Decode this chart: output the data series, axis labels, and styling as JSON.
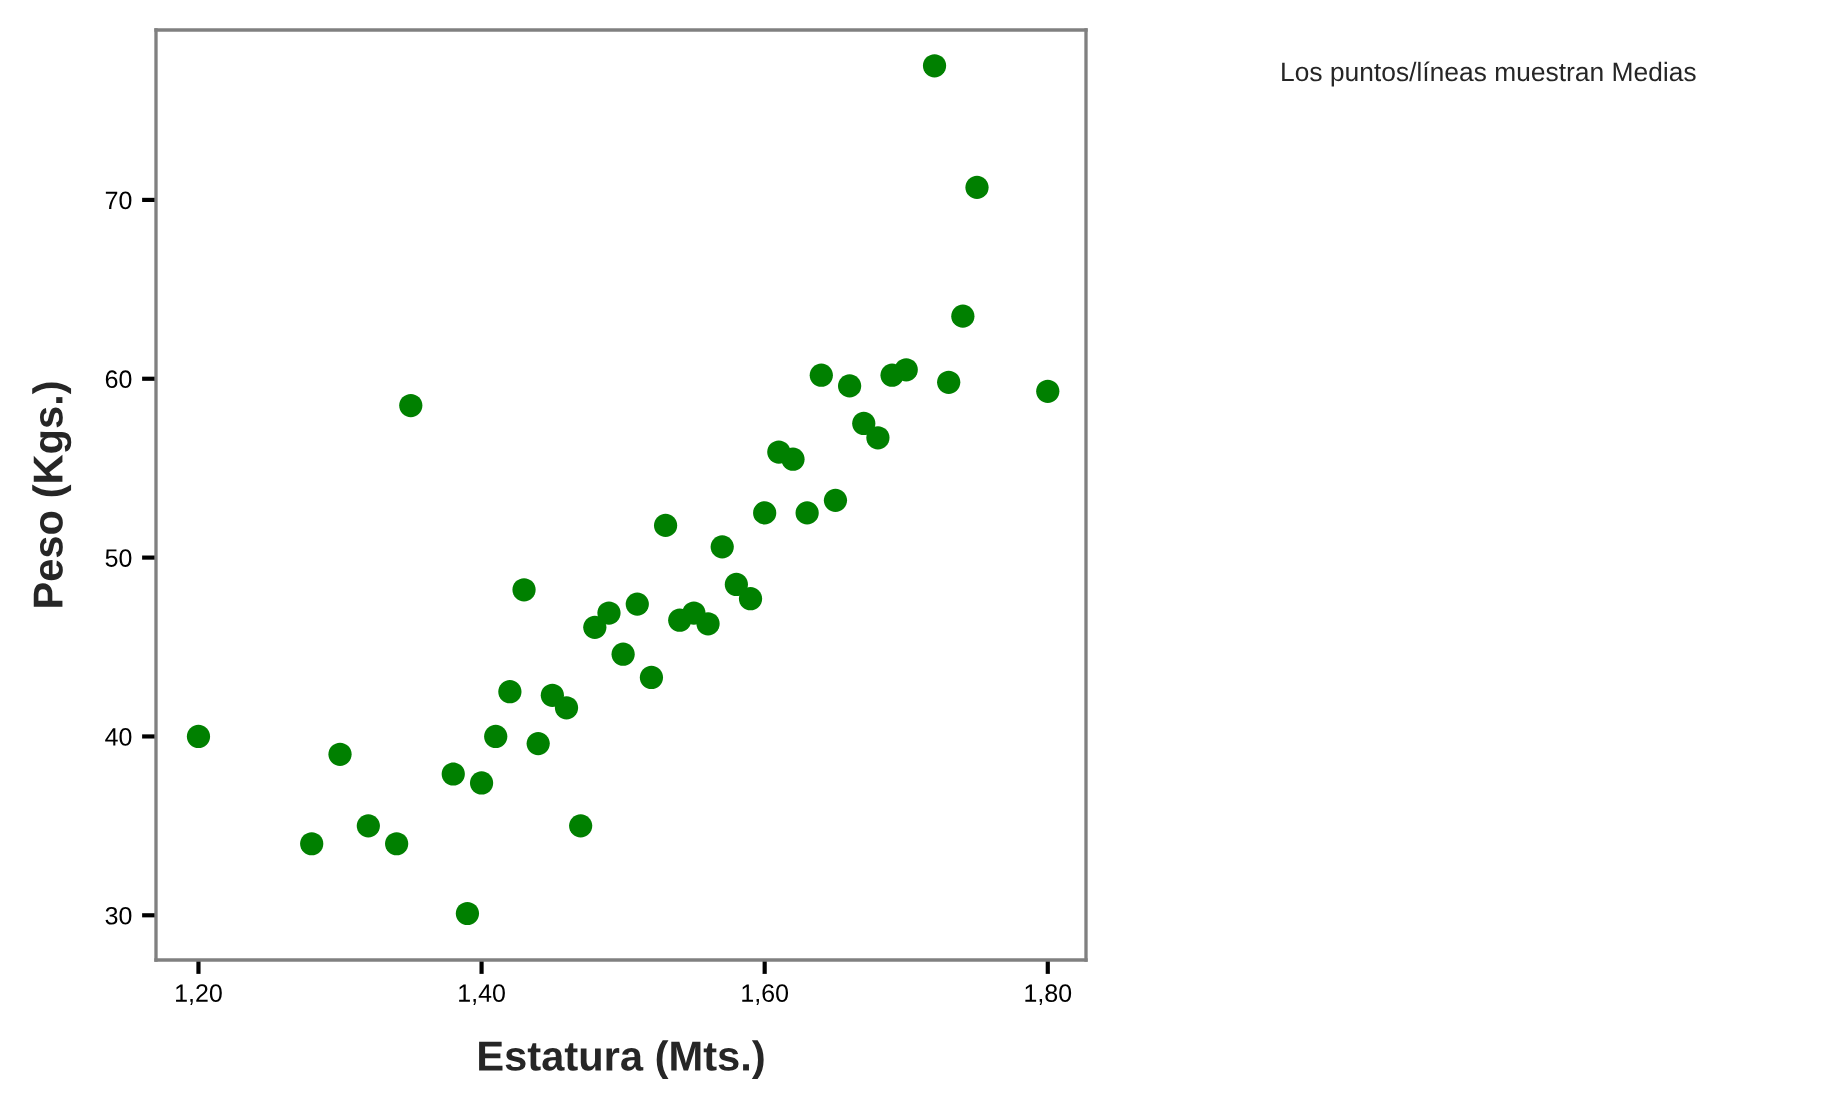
{
  "chart_data": {
    "type": "scatter",
    "xlabel": "Estatura (Mts.)",
    "ylabel": "Peso (Kgs.)",
    "annotations": [
      "Los puntos/líneas muestran Medias"
    ],
    "x": [
      1.2,
      1.28,
      1.3,
      1.32,
      1.34,
      1.35,
      1.38,
      1.4,
      1.39,
      1.41,
      1.42,
      1.43,
      1.44,
      1.45,
      1.46,
      1.47,
      1.48,
      1.49,
      1.5,
      1.51,
      1.52,
      1.53,
      1.54,
      1.55,
      1.56,
      1.57,
      1.58,
      1.59,
      1.6,
      1.61,
      1.62,
      1.63,
      1.64,
      1.65,
      1.66,
      1.67,
      1.68,
      1.69,
      1.7,
      1.72,
      1.73,
      1.74,
      1.75,
      1.8
    ],
    "series": [
      {
        "color": "#008000",
        "values": [
          40.0,
          34.0,
          39.0,
          35.0,
          34.0,
          58.5,
          37.9,
          37.4,
          30.1,
          40.0,
          42.5,
          48.2,
          39.6,
          42.3,
          41.6,
          35.0,
          46.1,
          46.9,
          44.6,
          47.4,
          43.3,
          51.8,
          46.5,
          46.9,
          46.3,
          50.6,
          48.5,
          47.7,
          52.5,
          55.9,
          55.5,
          52.5,
          60.2,
          53.2,
          59.6,
          57.5,
          56.7,
          60.2,
          60.5,
          77.5,
          59.8,
          63.5,
          70.7,
          59.3
        ]
      }
    ],
    "xlim": [
      1.17,
      1.827
    ],
    "xticks": [
      {
        "value": 1.2,
        "label": "1,20"
      },
      {
        "value": 1.4,
        "label": "1,40"
      },
      {
        "value": 1.6,
        "label": "1,60"
      },
      {
        "value": 1.8,
        "label": "1,80"
      }
    ],
    "ylim": [
      27.5,
      79.5
    ],
    "yticks": [
      30,
      40,
      50,
      60,
      70
    ],
    "marker": "circle",
    "grid": false
  }
}
